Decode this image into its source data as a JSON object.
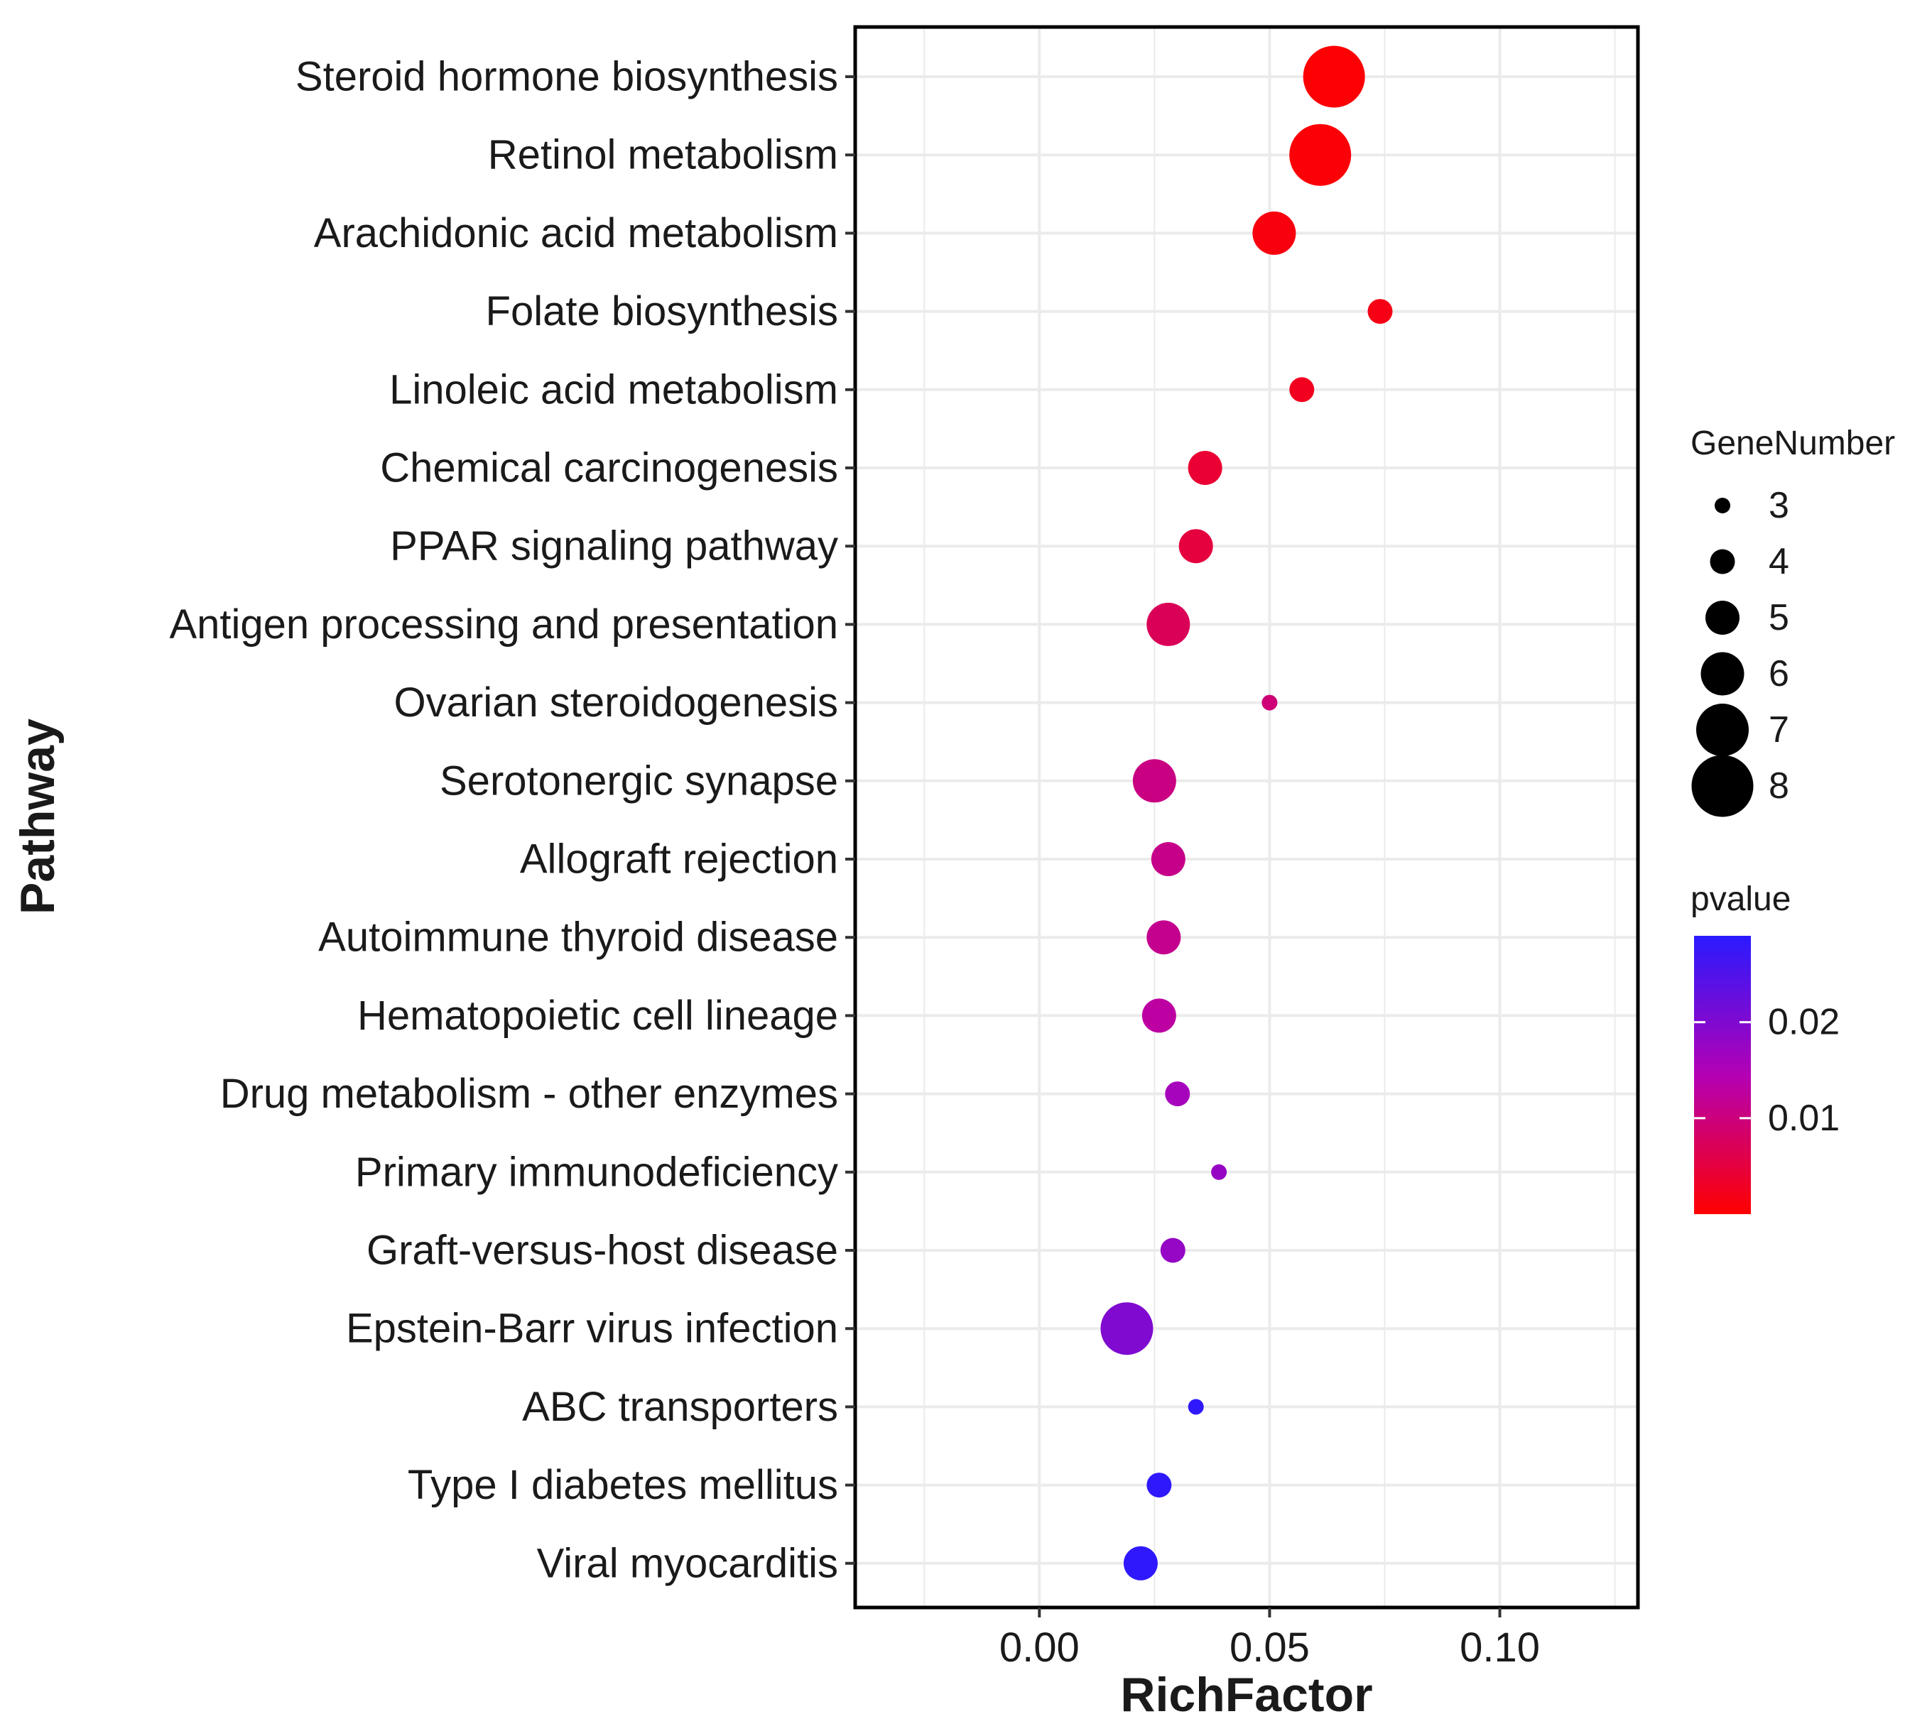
{
  "chart_data": {
    "type": "scatter",
    "title": "",
    "xlabel": "RichFactor",
    "ylabel": "Pathway",
    "xlim": [
      -0.04,
      0.13
    ],
    "xticks": [
      {
        "value": 0.0,
        "label": "0.00"
      },
      {
        "value": 0.05,
        "label": "0.05"
      },
      {
        "value": 0.1,
        "label": "0.10"
      }
    ],
    "grid": true,
    "legend_position": "right",
    "size_legend": {
      "title": "GeneNumber",
      "levels": [
        3,
        4,
        5,
        6,
        7,
        8
      ],
      "labels": [
        "3",
        "4",
        "5",
        "6",
        "7",
        "8"
      ]
    },
    "color_legend": {
      "title": "pvalue",
      "min": 0.0,
      "max": 0.029,
      "low_color": "#ff0000",
      "mid_color": "#b400b4",
      "high_color": "#2a1aff",
      "ticks": [
        {
          "value": 0.02,
          "label": "0.02"
        },
        {
          "value": 0.01,
          "label": "0.01"
        }
      ]
    },
    "points": [
      {
        "pathway": "Steroid hormone biosynthesis",
        "richfactor": 0.064,
        "genes": 8,
        "pvalue": 0.0003
      },
      {
        "pathway": "Retinol metabolism",
        "richfactor": 0.061,
        "genes": 8,
        "pvalue": 0.0006
      },
      {
        "pathway": "Arachidonic acid metabolism",
        "richfactor": 0.051,
        "genes": 6,
        "pvalue": 0.0012
      },
      {
        "pathway": "Folate biosynthesis",
        "richfactor": 0.074,
        "genes": 4,
        "pvalue": 0.0018
      },
      {
        "pathway": "Linoleic acid metabolism",
        "richfactor": 0.057,
        "genes": 4,
        "pvalue": 0.0025
      },
      {
        "pathway": "Chemical carcinogenesis",
        "richfactor": 0.036,
        "genes": 5,
        "pvalue": 0.004
      },
      {
        "pathway": "PPAR signaling pathway",
        "richfactor": 0.034,
        "genes": 5,
        "pvalue": 0.005
      },
      {
        "pathway": "Antigen processing and presentation",
        "richfactor": 0.028,
        "genes": 6,
        "pvalue": 0.007
      },
      {
        "pathway": "Ovarian steroidogenesis",
        "richfactor": 0.05,
        "genes": 3,
        "pvalue": 0.0095
      },
      {
        "pathway": "Serotonergic synapse",
        "richfactor": 0.025,
        "genes": 6,
        "pvalue": 0.0105
      },
      {
        "pathway": "Allograft rejection",
        "richfactor": 0.028,
        "genes": 5,
        "pvalue": 0.011
      },
      {
        "pathway": "Autoimmune thyroid disease",
        "richfactor": 0.027,
        "genes": 5,
        "pvalue": 0.0115
      },
      {
        "pathway": "Hematopoietic cell lineage",
        "richfactor": 0.026,
        "genes": 5,
        "pvalue": 0.013
      },
      {
        "pathway": "Drug metabolism - other enzymes",
        "richfactor": 0.03,
        "genes": 4,
        "pvalue": 0.016
      },
      {
        "pathway": "Primary immunodeficiency",
        "richfactor": 0.039,
        "genes": 3,
        "pvalue": 0.0175
      },
      {
        "pathway": "Graft-versus-host disease",
        "richfactor": 0.029,
        "genes": 4,
        "pvalue": 0.0178
      },
      {
        "pathway": "Epstein-Barr virus infection",
        "richfactor": 0.019,
        "genes": 7,
        "pvalue": 0.02
      },
      {
        "pathway": "ABC transporters",
        "richfactor": 0.034,
        "genes": 3,
        "pvalue": 0.0285
      },
      {
        "pathway": "Type I diabetes mellitus",
        "richfactor": 0.026,
        "genes": 4,
        "pvalue": 0.0285
      },
      {
        "pathway": "Viral myocarditis",
        "richfactor": 0.022,
        "genes": 5,
        "pvalue": 0.0285
      }
    ]
  }
}
